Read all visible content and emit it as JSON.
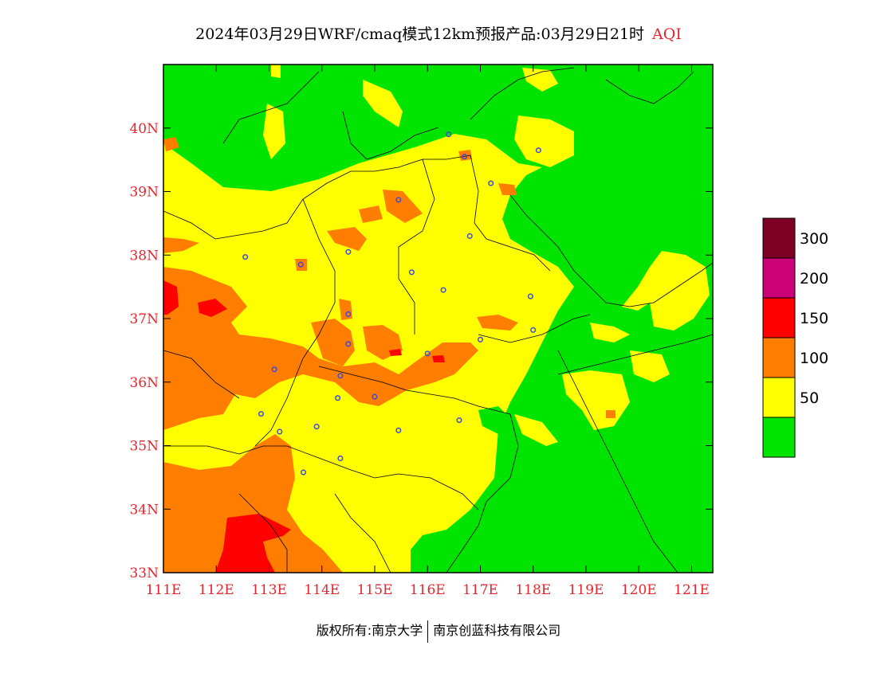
{
  "title": {
    "main": "2024年03月29日WRF/cmaq模式12km预报产品:03月29日21时",
    "pollutant": "AQI"
  },
  "footer": {
    "left": "版权所有:南京大学",
    "right": "南京创蓝科技有限公司"
  },
  "map": {
    "lon_range": [
      111,
      121.4
    ],
    "lat_range": [
      33,
      41
    ],
    "x_ticks": [
      "111E",
      "112E",
      "113E",
      "114E",
      "115E",
      "116E",
      "117E",
      "118E",
      "119E",
      "120E",
      "121E"
    ],
    "y_ticks": [
      "33N",
      "34N",
      "35N",
      "36N",
      "37N",
      "38N",
      "39N",
      "40N"
    ]
  },
  "legend": {
    "labels": [
      "50",
      "100",
      "150",
      "200",
      "300"
    ],
    "colors": [
      "#00e400",
      "#ffff00",
      "#ff7e00",
      "#ff0000",
      "#cc0077",
      "#7e0023"
    ]
  },
  "colors": {
    "good": "#00e400",
    "moderate": "#ffff00",
    "usg": "#ff7e00",
    "unhealthy": "#ff0000",
    "city_marker": "#3a4bd6",
    "axis_text": "#e8242c"
  },
  "cities": [
    {
      "lon": 116.4,
      "lat": 39.9
    },
    {
      "lon": 116.7,
      "lat": 39.55
    },
    {
      "lon": 117.2,
      "lat": 39.13
    },
    {
      "lon": 118.1,
      "lat": 39.65
    },
    {
      "lon": 115.45,
      "lat": 38.87
    },
    {
      "lon": 116.8,
      "lat": 38.3
    },
    {
      "lon": 112.55,
      "lat": 37.97
    },
    {
      "lon": 113.6,
      "lat": 37.85
    },
    {
      "lon": 114.5,
      "lat": 38.05
    },
    {
      "lon": 115.7,
      "lat": 37.73
    },
    {
      "lon": 116.3,
      "lat": 37.45
    },
    {
      "lon": 117.95,
      "lat": 37.35
    },
    {
      "lon": 114.5,
      "lat": 37.07
    },
    {
      "lon": 118.0,
      "lat": 36.82
    },
    {
      "lon": 114.5,
      "lat": 36.6
    },
    {
      "lon": 117.0,
      "lat": 36.67
    },
    {
      "lon": 116.0,
      "lat": 36.45
    },
    {
      "lon": 113.1,
      "lat": 36.2
    },
    {
      "lon": 114.35,
      "lat": 36.1
    },
    {
      "lon": 114.3,
      "lat": 35.75
    },
    {
      "lon": 115.0,
      "lat": 35.77
    },
    {
      "lon": 112.85,
      "lat": 35.5
    },
    {
      "lon": 113.9,
      "lat": 35.3
    },
    {
      "lon": 113.2,
      "lat": 35.22
    },
    {
      "lon": 115.45,
      "lat": 35.24
    },
    {
      "lon": 116.6,
      "lat": 35.4
    },
    {
      "lon": 114.35,
      "lat": 34.8
    },
    {
      "lon": 113.65,
      "lat": 34.58
    }
  ]
}
